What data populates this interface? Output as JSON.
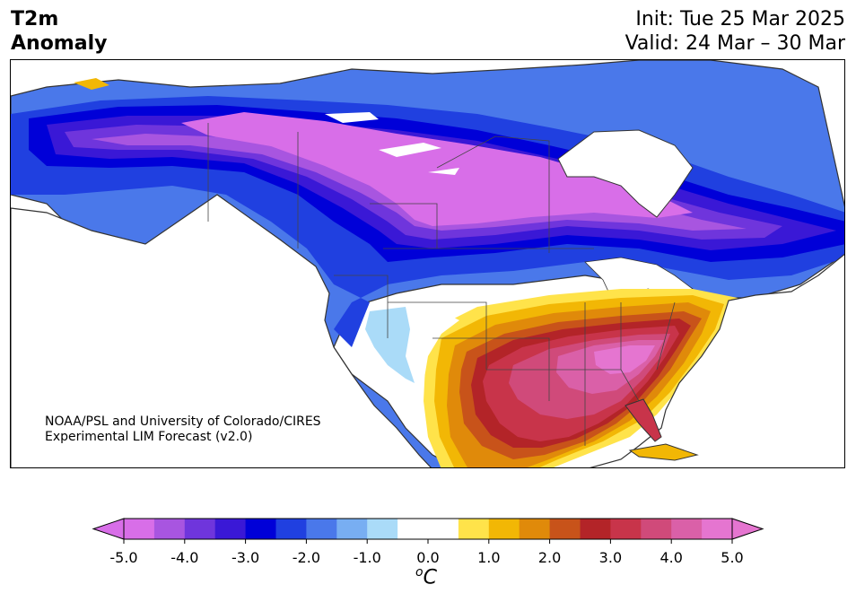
{
  "header": {
    "title_line1": "T2m",
    "title_line2": "Anomaly",
    "init": "Init: Tue 25 Mar 2025",
    "valid": "Valid: 24 Mar – 30 Mar"
  },
  "map": {
    "credit_line1": "NOAA/PSL and University of Colorado/CIRES",
    "credit_line2": "Experimental LIM Forecast (v2.0)",
    "region": "North America"
  },
  "colorbar": {
    "unit_base": "C",
    "unit_sup": "o",
    "ticks": [
      "-5.0",
      "-4.0",
      "-3.0",
      "-2.0",
      "-1.0",
      "0.0",
      "1.0",
      "2.0",
      "3.0",
      "4.0",
      "5.0"
    ],
    "colors": [
      "#d86ee8",
      "#a855e0",
      "#6f35dc",
      "#3a18d6",
      "#0000d8",
      "#2040e0",
      "#4a78ea",
      "#78aef2",
      "#aadbf8",
      "#ffffff",
      "#ffffff",
      "#ffe34a",
      "#f2b705",
      "#e08a0a",
      "#c8531a",
      "#b32428",
      "#c8344a",
      "#d04a7a",
      "#da60a8",
      "#e575d0"
    ]
  }
}
